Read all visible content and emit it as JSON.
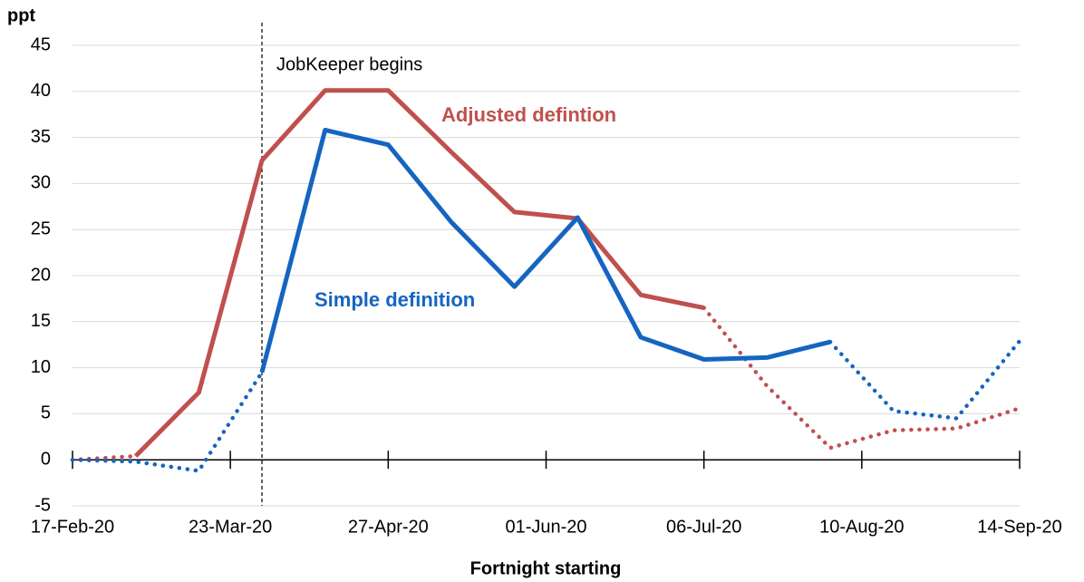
{
  "chart_data": {
    "type": "line",
    "y_label": "ppt",
    "x_label": "Fortnight starting",
    "annotations": [
      "JobKeeper begins",
      "Adjusted defintion",
      "Simple definition"
    ],
    "vline_x": "30-Mar-20",
    "x": [
      "17-Feb-20",
      "02-Mar-20",
      "16-Mar-20",
      "30-Mar-20",
      "13-Apr-20",
      "27-Apr-20",
      "11-May-20",
      "25-May-20",
      "08-Jun-20",
      "22-Jun-20",
      "06-Jul-20",
      "20-Jul-20",
      "03-Aug-20",
      "17-Aug-20",
      "31-Aug-20",
      "14-Sep-20"
    ],
    "series": [
      {
        "color": "#c0504d",
        "style": "dotted",
        "values": [
          0,
          0.4,
          null,
          null,
          null,
          null,
          null,
          null,
          null,
          null,
          16.5,
          8,
          1.3,
          3.2,
          3.4,
          5.6
        ]
      },
      {
        "color": "#c0504d",
        "style": "solid",
        "values": [
          null,
          0.4,
          7.3,
          32.5,
          40.1,
          40.1,
          33.4,
          26.9,
          26.2,
          17.9,
          16.5,
          null,
          null,
          null,
          null,
          null
        ]
      },
      {
        "color": "#1565c0",
        "style": "dotted",
        "values": [
          0,
          -0.2,
          -1.2,
          9.5,
          null,
          null,
          null,
          null,
          null,
          null,
          null,
          null,
          12.8,
          5.3,
          4.5,
          12.9
        ]
      },
      {
        "color": "#1565c0",
        "style": "solid",
        "values": [
          null,
          null,
          null,
          9.5,
          35.8,
          34.2,
          25.8,
          18.8,
          26.3,
          13.3,
          10.9,
          11.1,
          12.8,
          null,
          null,
          null
        ]
      }
    ],
    "xlim": [
      "17-Feb-20",
      "14-Sep-20"
    ],
    "xticks": [
      "17-Feb-20",
      "23-Mar-20",
      "27-Apr-20",
      "01-Jun-20",
      "06-Jul-20",
      "10-Aug-20",
      "14-Sep-20"
    ],
    "ylim": [
      -5,
      45
    ],
    "yticks": [
      -5,
      0,
      5,
      10,
      15,
      20,
      25,
      30,
      35,
      40,
      45
    ],
    "grid": true
  }
}
